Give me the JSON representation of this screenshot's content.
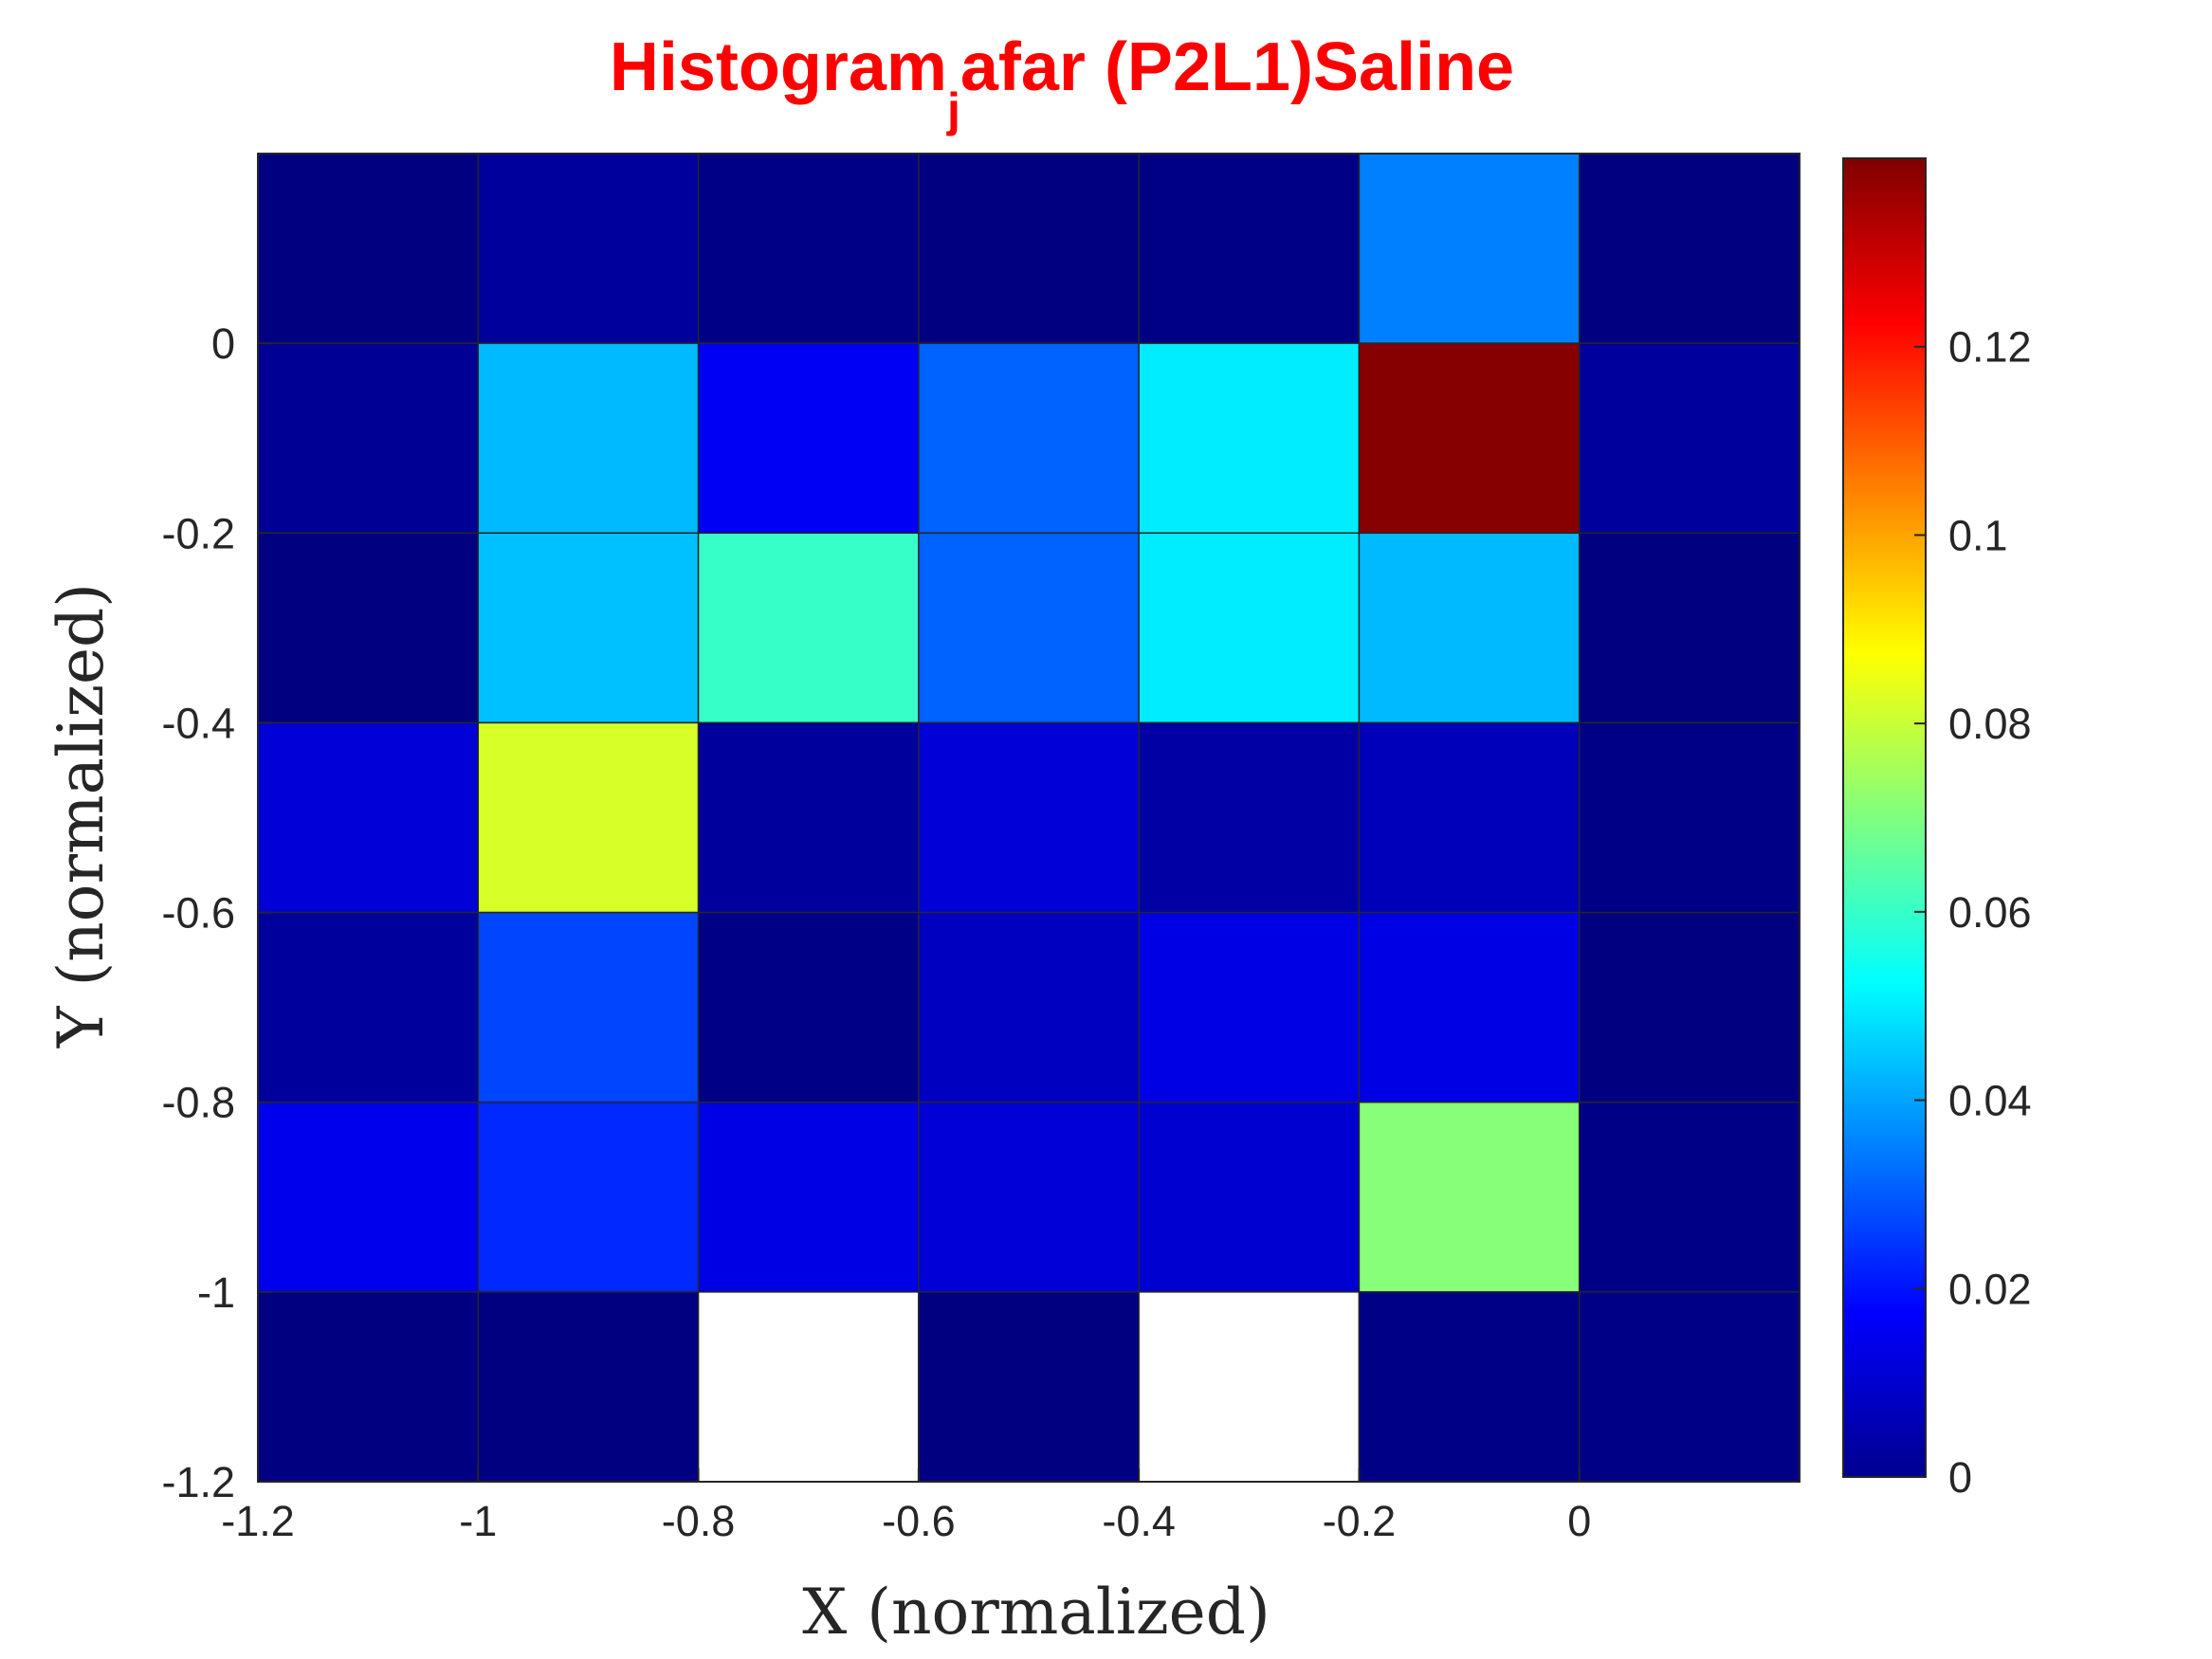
{
  "chart_data": {
    "type": "heatmap",
    "title": {
      "prefix": "Histogram",
      "subscript": "j",
      "suffix": "afar (P2L1)Saline"
    },
    "xlabel": "X (normalized)",
    "ylabel": "Y (normalized)",
    "x_edges": [
      -1.2,
      -1.0,
      -0.8,
      -0.6,
      -0.4,
      -0.2,
      0.0,
      0.2
    ],
    "y_edges": [
      -1.2,
      -1.0,
      -0.8,
      -0.6,
      -0.4,
      -0.2,
      0.0,
      0.2
    ],
    "xlim": [
      -1.2,
      0.2
    ],
    "ylim": [
      -1.2,
      0.2
    ],
    "x_ticks": [
      {
        "value": -1.2,
        "label": "-1.2"
      },
      {
        "value": -1.0,
        "label": "-1"
      },
      {
        "value": -0.8,
        "label": "-0.8"
      },
      {
        "value": -0.6,
        "label": "-0.6"
      },
      {
        "value": -0.4,
        "label": "-0.4"
      },
      {
        "value": -0.2,
        "label": "-0.2"
      },
      {
        "value": 0.0,
        "label": "0"
      }
    ],
    "y_ticks": [
      {
        "value": -1.2,
        "label": "-1.2"
      },
      {
        "value": -1.0,
        "label": "-1"
      },
      {
        "value": -0.8,
        "label": "-0.8"
      },
      {
        "value": -0.6,
        "label": "-0.6"
      },
      {
        "value": -0.4,
        "label": "-0.4"
      },
      {
        "value": -0.2,
        "label": "-0.2"
      },
      {
        "value": 0.0,
        "label": "0"
      }
    ],
    "values_rows_top_to_bottom": [
      [
        0.0,
        0.004,
        0.001,
        0.0,
        0.001,
        0.035,
        0.0
      ],
      [
        0.003,
        0.043,
        0.016,
        0.031,
        0.05,
        0.139,
        0.004
      ],
      [
        0.0,
        0.044,
        0.06,
        0.031,
        0.05,
        0.043,
        0.0
      ],
      [
        0.012,
        0.082,
        0.004,
        0.012,
        0.005,
        0.008,
        0.001
      ],
      [
        0.004,
        0.027,
        0.001,
        0.009,
        0.014,
        0.014,
        0.0
      ],
      [
        0.015,
        0.023,
        0.014,
        0.012,
        0.011,
        0.071,
        0.001
      ],
      [
        0.0,
        0.0,
        null,
        0.0,
        null,
        0.001,
        0.001
      ]
    ],
    "empty_cell_color": "#ffffff",
    "grid_color": "#262626",
    "colormap": "jet",
    "colorbar": {
      "min": 0,
      "max": 0.14,
      "ticks": [
        {
          "value": 0,
          "label": "0"
        },
        {
          "value": 0.02,
          "label": "0.02"
        },
        {
          "value": 0.04,
          "label": "0.04"
        },
        {
          "value": 0.06,
          "label": "0.06"
        },
        {
          "value": 0.08,
          "label": "0.08"
        },
        {
          "value": 0.1,
          "label": "0.1"
        },
        {
          "value": 0.12,
          "label": "0.12"
        }
      ]
    },
    "title_color": "#ff0000"
  }
}
